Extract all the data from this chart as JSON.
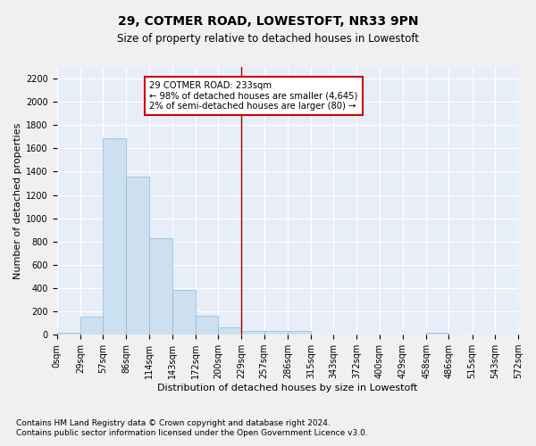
{
  "title": "29, COTMER ROAD, LOWESTOFT, NR33 9PN",
  "subtitle": "Size of property relative to detached houses in Lowestoft",
  "xlabel": "Distribution of detached houses by size in Lowestoft",
  "ylabel": "Number of detached properties",
  "bar_color": "#cce0f0",
  "bar_edge_color": "#88bbdd",
  "background_color": "#e8eef8",
  "grid_color": "#ffffff",
  "vline_x": 229,
  "vline_color": "#990000",
  "annotation_title": "29 COTMER ROAD: 233sqm",
  "annotation_line1": "← 98% of detached houses are smaller (4,645)",
  "annotation_line2": "2% of semi-detached houses are larger (80) →",
  "annotation_box_facecolor": "#ffffff",
  "annotation_box_edge": "#cc0000",
  "bin_edges": [
    0,
    29,
    57,
    86,
    114,
    143,
    172,
    200,
    229,
    257,
    286,
    315,
    343,
    372,
    400,
    429,
    458,
    486,
    515,
    543,
    572
  ],
  "bar_heights": [
    15,
    155,
    1690,
    1360,
    830,
    385,
    165,
    65,
    35,
    30,
    30,
    0,
    0,
    0,
    0,
    0,
    15,
    0,
    0,
    0
  ],
  "ylim": [
    0,
    2300
  ],
  "yticks": [
    0,
    200,
    400,
    600,
    800,
    1000,
    1200,
    1400,
    1600,
    1800,
    2000,
    2200
  ],
  "fig_facecolor": "#f0f0f0",
  "footer_line1": "Contains HM Land Registry data © Crown copyright and database right 2024.",
  "footer_line2": "Contains public sector information licensed under the Open Government Licence v3.0.",
  "title_fontsize": 10,
  "subtitle_fontsize": 8.5,
  "footer_fontsize": 6.5,
  "tick_fontsize": 7,
  "ylabel_fontsize": 8,
  "xlabel_fontsize": 8
}
